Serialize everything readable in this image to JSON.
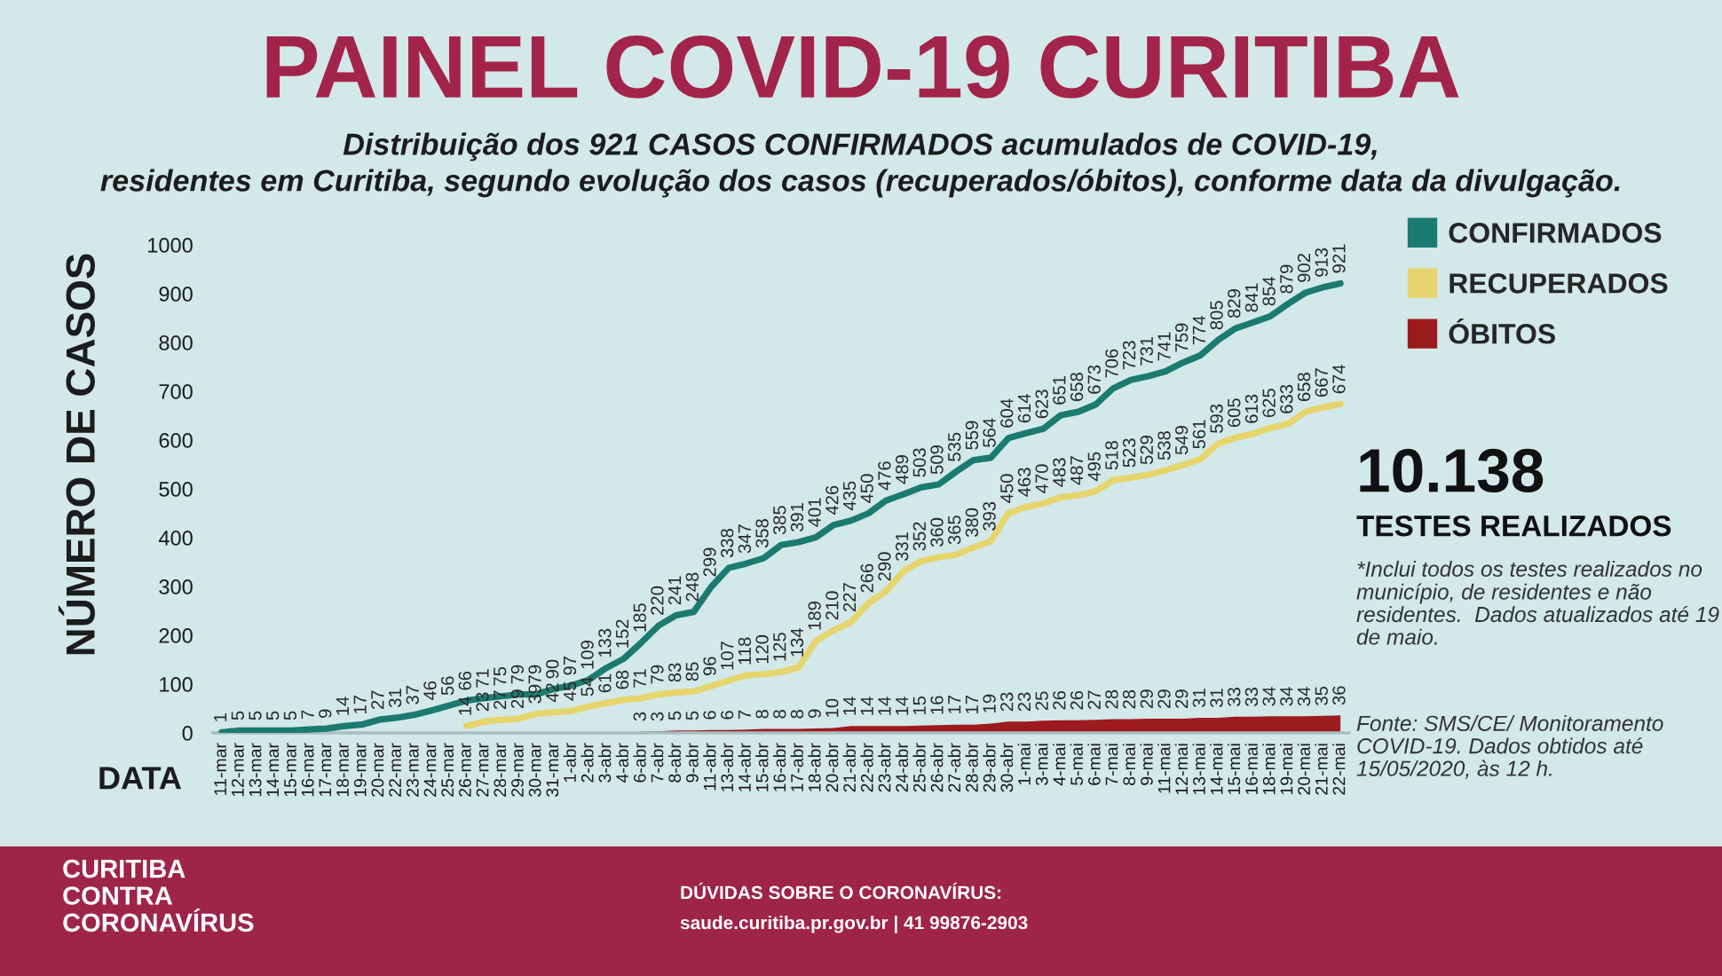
{
  "chart_data": {
    "type": "line",
    "title": "PAINEL COVID-19 CURITIBA",
    "subtitle": "Distribuição dos 921 CASOS CONFIRMADOS acumulados de COVID-19,\nresidentes em Curitiba, segundo evolução dos casos (recuperados/óbitos), conforme data da divulgação.",
    "xlabel": "DATA",
    "ylabel": "NÚMERO DE CASOS",
    "categories": [
      "11-mar",
      "12-mar",
      "13-mar",
      "14-mar",
      "15-mar",
      "16-mar",
      "17-mar",
      "18-mar",
      "19-mar",
      "20-mar",
      "22-mar",
      "23-mar",
      "24-mar",
      "25-mar",
      "26-mar",
      "27-mar",
      "28-mar",
      "29-mar",
      "30-mar",
      "31-mar",
      "1-abr",
      "2-abr",
      "3-abr",
      "4-abr",
      "6-abr",
      "7-abr",
      "8-abr",
      "9-abr",
      "11-abr",
      "13-abr",
      "14-abr",
      "15-abr",
      "16-abr",
      "17-abr",
      "18-abr",
      "20-abr",
      "21-abr",
      "22-abr",
      "23-abr",
      "24-abr",
      "25-abr",
      "26-abr",
      "27-abr",
      "28-abr",
      "29-abr",
      "30-abr",
      "1-mai",
      "3-mai",
      "4-mai",
      "5-mai",
      "6-mai",
      "7-mai",
      "8-mai",
      "9-mai",
      "11-mai",
      "12-mai",
      "13-mai",
      "14-mai",
      "15-mai",
      "16-mai",
      "18-mai",
      "19-mai",
      "20-mai",
      "21-mai",
      "22-mai"
    ],
    "series": [
      {
        "name": "CONFIRMADOS",
        "color": "#1b7b70",
        "values": [
          1,
          5,
          5,
          5,
          5,
          7,
          9,
          14,
          17,
          27,
          31,
          37,
          46,
          56,
          66,
          71,
          75,
          79,
          79,
          90,
          97,
          109,
          133,
          152,
          185,
          220,
          241,
          248,
          299,
          338,
          347,
          358,
          385,
          391,
          401,
          426,
          435,
          450,
          476,
          489,
          503,
          509,
          535,
          559,
          564,
          604,
          614,
          623,
          651,
          658,
          673,
          706,
          723,
          731,
          741,
          759,
          774,
          805,
          829,
          841,
          854,
          879,
          902,
          913,
          921
        ]
      },
      {
        "name": "RECUPERADOS",
        "color": "#e6d46c",
        "values": [
          null,
          null,
          null,
          null,
          null,
          null,
          null,
          null,
          null,
          null,
          null,
          null,
          null,
          null,
          14,
          23,
          27,
          29,
          39,
          42,
          45,
          54,
          61,
          68,
          71,
          79,
          83,
          85,
          96,
          107,
          118,
          120,
          125,
          134,
          189,
          210,
          227,
          266,
          290,
          331,
          352,
          360,
          365,
          380,
          393,
          450,
          463,
          470,
          483,
          487,
          495,
          518,
          523,
          529,
          538,
          549,
          561,
          593,
          605,
          613,
          625,
          633,
          658,
          667,
          674
        ]
      },
      {
        "name": "ÓBITOS",
        "type": "area",
        "color": "#9c1b1f",
        "values": [
          null,
          null,
          null,
          null,
          null,
          null,
          null,
          null,
          null,
          null,
          null,
          null,
          null,
          null,
          null,
          null,
          null,
          null,
          null,
          null,
          null,
          null,
          null,
          null,
          3,
          3,
          5,
          5,
          6,
          6,
          7,
          8,
          8,
          8,
          9,
          10,
          14,
          14,
          14,
          14,
          15,
          16,
          17,
          17,
          19,
          23,
          23,
          25,
          26,
          26,
          27,
          28,
          28,
          29,
          29,
          29,
          31,
          31,
          33,
          33,
          34,
          34,
          34,
          35,
          36
        ]
      }
    ],
    "ylim": [
      0,
      1000
    ],
    "yticks": [
      0,
      100,
      200,
      300,
      400,
      500,
      600,
      700,
      800,
      900,
      1000
    ],
    "data_labels": true,
    "legend": "right",
    "annotations": [
      "10.138",
      "TESTES REALIZADOS",
      "*Inclui todos os testes realizados no município, de residentes e não residentes.  Dados atualizados até 19 de maio.",
      "Fonte: SMS/CE/ Monitoramento COVID-19. Dados obtidos até 15/05/2020, às 12 h.",
      "CURITIBA\nCONTRA\nCORONAVÍRUS",
      "DÚVIDAS SOBRE O CORONAVÍRUS:",
      "saude.curitiba.pr.gov.br | 41 99876-2903"
    ]
  }
}
